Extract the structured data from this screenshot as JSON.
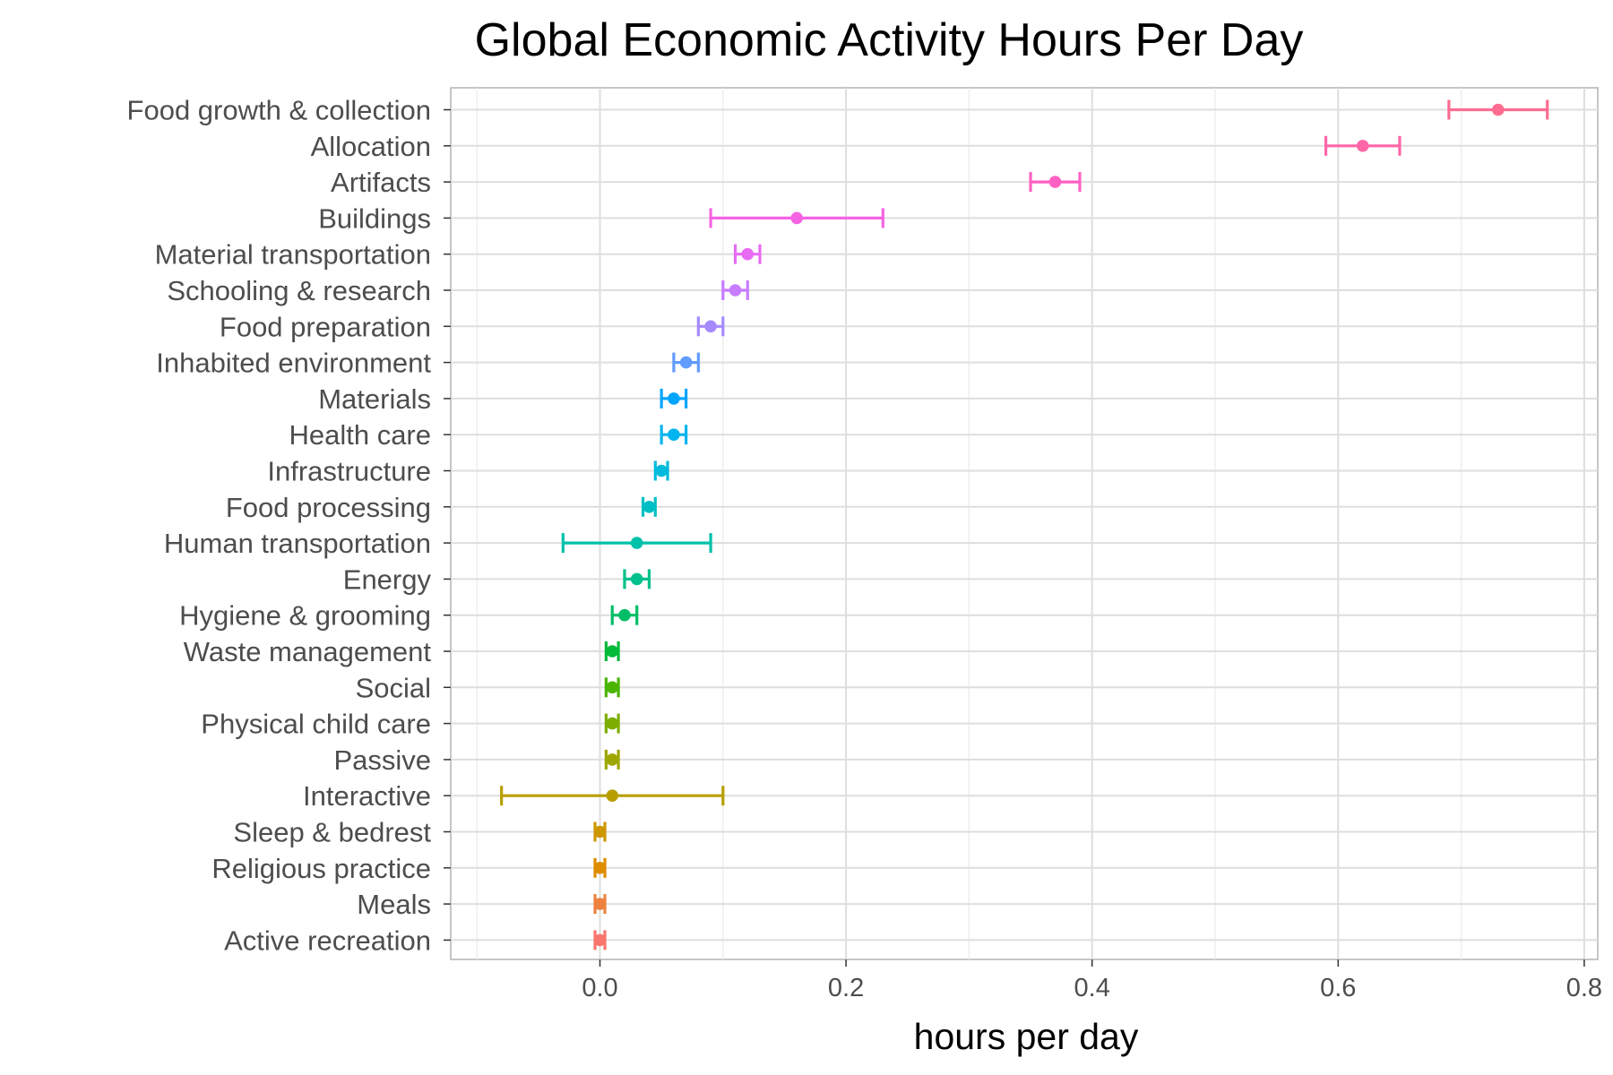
{
  "chart_data": {
    "type": "scatter",
    "subtype": "point-range with error bars",
    "title": "Global Economic Activity Hours Per Day",
    "xlabel": "hours per day",
    "ylabel": "",
    "xlim": [
      -0.12,
      0.81
    ],
    "x_ticks": [
      0.0,
      0.2,
      0.4,
      0.6,
      0.8
    ],
    "x_tick_labels": [
      "0.0",
      "0.2",
      "0.4",
      "0.6",
      "0.8"
    ],
    "grid": true,
    "legend": "none",
    "categories": [
      "Food growth & collection",
      "Allocation",
      "Artifacts",
      "Buildings",
      "Material transportation",
      "Schooling & research",
      "Food preparation",
      "Inhabited environment",
      "Materials",
      "Health care",
      "Infrastructure",
      "Food processing",
      "Human transportation",
      "Energy",
      "Hygiene & grooming",
      "Waste management",
      "Social",
      "Physical child care",
      "Passive",
      "Interactive",
      "Sleep & bedrest",
      "Religious practice",
      "Meals",
      "Active recreation"
    ],
    "values": [
      0.73,
      0.62,
      0.37,
      0.16,
      0.12,
      0.11,
      0.09,
      0.07,
      0.06,
      0.06,
      0.05,
      0.04,
      0.03,
      0.03,
      0.02,
      0.01,
      0.01,
      0.01,
      0.01,
      0.01,
      0.0,
      0.0,
      0.0,
      0.0
    ],
    "lower": [
      0.69,
      0.59,
      0.35,
      0.09,
      0.11,
      0.1,
      0.08,
      0.06,
      0.05,
      0.05,
      0.045,
      0.035,
      -0.03,
      0.02,
      0.01,
      0.005,
      0.005,
      0.005,
      0.005,
      -0.08,
      -0.004,
      -0.004,
      -0.004,
      -0.004
    ],
    "upper": [
      0.77,
      0.65,
      0.39,
      0.23,
      0.13,
      0.12,
      0.1,
      0.08,
      0.07,
      0.07,
      0.055,
      0.045,
      0.09,
      0.04,
      0.03,
      0.015,
      0.015,
      0.015,
      0.015,
      0.1,
      0.004,
      0.004,
      0.004,
      0.004
    ],
    "colors": [
      "#F8766D",
      "#ED813E",
      "#DE8C00",
      "#CD9600",
      "#B79F00",
      "#9EA700",
      "#7CAE00",
      "#49B500",
      "#00BA38",
      "#00BE67",
      "#00C08B",
      "#00C1A9",
      "#00BFC4",
      "#00BBDC",
      "#00B4EF",
      "#00A5FF",
      "#619CFF",
      "#A58AFF",
      "#C77CFF",
      "#E76BF3",
      "#F564E3",
      "#FF61C3",
      "#FF66A8",
      "#FF6C91"
    ],
    "color_order": "bottom-to-top",
    "panel_border_color": "#b3b3b3",
    "grid_color": "#dedede"
  }
}
